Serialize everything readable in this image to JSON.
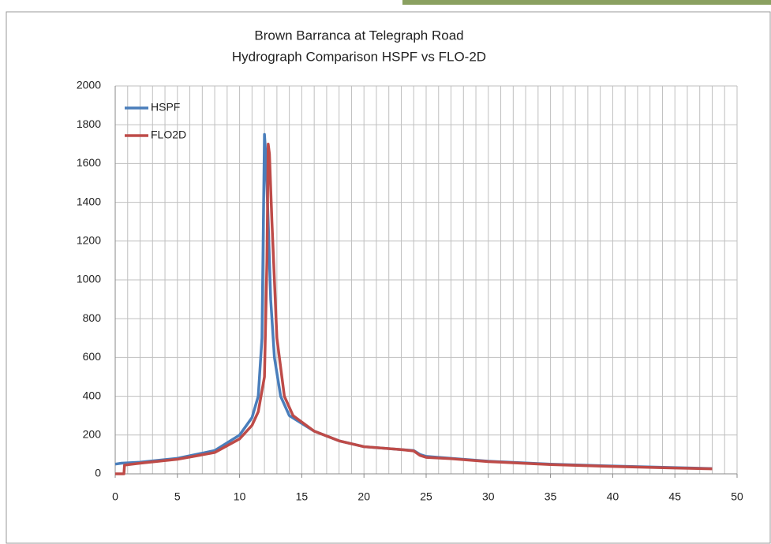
{
  "chart_data": {
    "type": "line",
    "title": "Brown Barranca at Telegraph Road",
    "subtitle": "Hydrograph Comparison HSPF vs FLO-2D",
    "xlim": [
      0,
      50
    ],
    "xticks": [
      0,
      5,
      10,
      15,
      20,
      25,
      30,
      35,
      40,
      45,
      50
    ],
    "xminorticks": [
      0,
      1,
      2,
      3,
      4,
      5,
      6,
      7,
      8,
      9,
      10,
      11,
      12,
      13,
      14,
      15,
      16,
      17,
      18,
      19,
      20,
      21,
      22,
      23,
      24,
      25,
      26,
      27,
      28,
      29,
      30,
      31,
      32,
      33,
      34,
      35,
      36,
      37,
      38,
      39,
      40,
      41,
      42,
      43,
      44,
      45,
      46,
      47,
      48,
      49,
      50
    ],
    "ylim": [
      0,
      2000
    ],
    "yticks": [
      0,
      200,
      400,
      600,
      800,
      1000,
      1200,
      1400,
      1600,
      1800,
      2000
    ],
    "grid": true,
    "legend": "top-left",
    "series": [
      {
        "name": "HSPF",
        "color": "#4a7ebb",
        "x": [
          0,
          0.5,
          2,
          5,
          8,
          10,
          11,
          11.5,
          11.8,
          12.0,
          12.1,
          12.3,
          12.5,
          12.8,
          13.3,
          14,
          16,
          18,
          20,
          23,
          24,
          24.5,
          25,
          27,
          30,
          35,
          40,
          45,
          48
        ],
        "values": [
          50,
          55,
          60,
          80,
          120,
          200,
          290,
          400,
          700,
          1750,
          1650,
          1300,
          900,
          600,
          400,
          300,
          220,
          170,
          140,
          125,
          120,
          100,
          90,
          80,
          65,
          50,
          40,
          32,
          27
        ]
      },
      {
        "name": "FLO2D",
        "color": "#be4b48",
        "x": [
          0,
          0.7,
          0.75,
          2,
          5,
          8,
          10,
          11,
          11.5,
          12.0,
          12.2,
          12.3,
          12.4,
          12.6,
          13,
          13.6,
          14.3,
          16,
          18,
          20,
          23,
          24,
          24.5,
          25,
          27,
          30,
          35,
          40,
          45,
          48
        ],
        "values": [
          0,
          0,
          45,
          55,
          75,
          110,
          180,
          250,
          320,
          500,
          1100,
          1700,
          1650,
          1300,
          700,
          400,
          300,
          220,
          170,
          140,
          125,
          118,
          95,
          85,
          78,
          63,
          48,
          38,
          30,
          26
        ]
      }
    ]
  }
}
